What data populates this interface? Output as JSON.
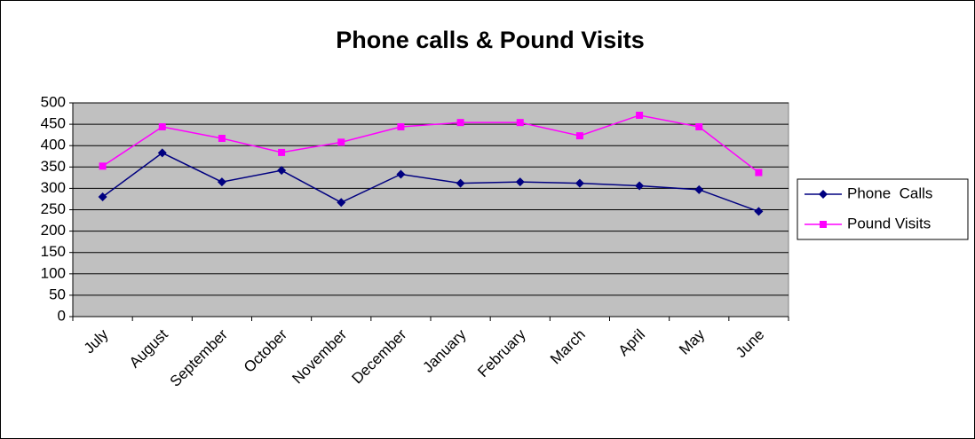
{
  "chart_data": {
    "type": "line",
    "title": "Phone calls & Pound Visits",
    "categories": [
      "July",
      "August",
      "September",
      "October",
      "November",
      "December",
      "January",
      "February",
      "March",
      "April",
      "May",
      "June"
    ],
    "series": [
      {
        "name": "Phone  Calls",
        "color": "#000080",
        "marker": "diamond",
        "values": [
          280,
          383,
          315,
          342,
          267,
          333,
          312,
          315,
          312,
          306,
          297,
          246
        ]
      },
      {
        "name": "Pound Visits",
        "color": "#ff00ff",
        "marker": "square",
        "values": [
          352,
          444,
          417,
          384,
          408,
          444,
          454,
          454,
          423,
          471,
          444,
          337
        ]
      }
    ],
    "ylim": [
      0,
      500
    ],
    "yticks": [
      0,
      50,
      100,
      150,
      200,
      250,
      300,
      350,
      400,
      450,
      500
    ],
    "grid": true,
    "legend": "right",
    "plot_background": "#c0c0c0"
  }
}
